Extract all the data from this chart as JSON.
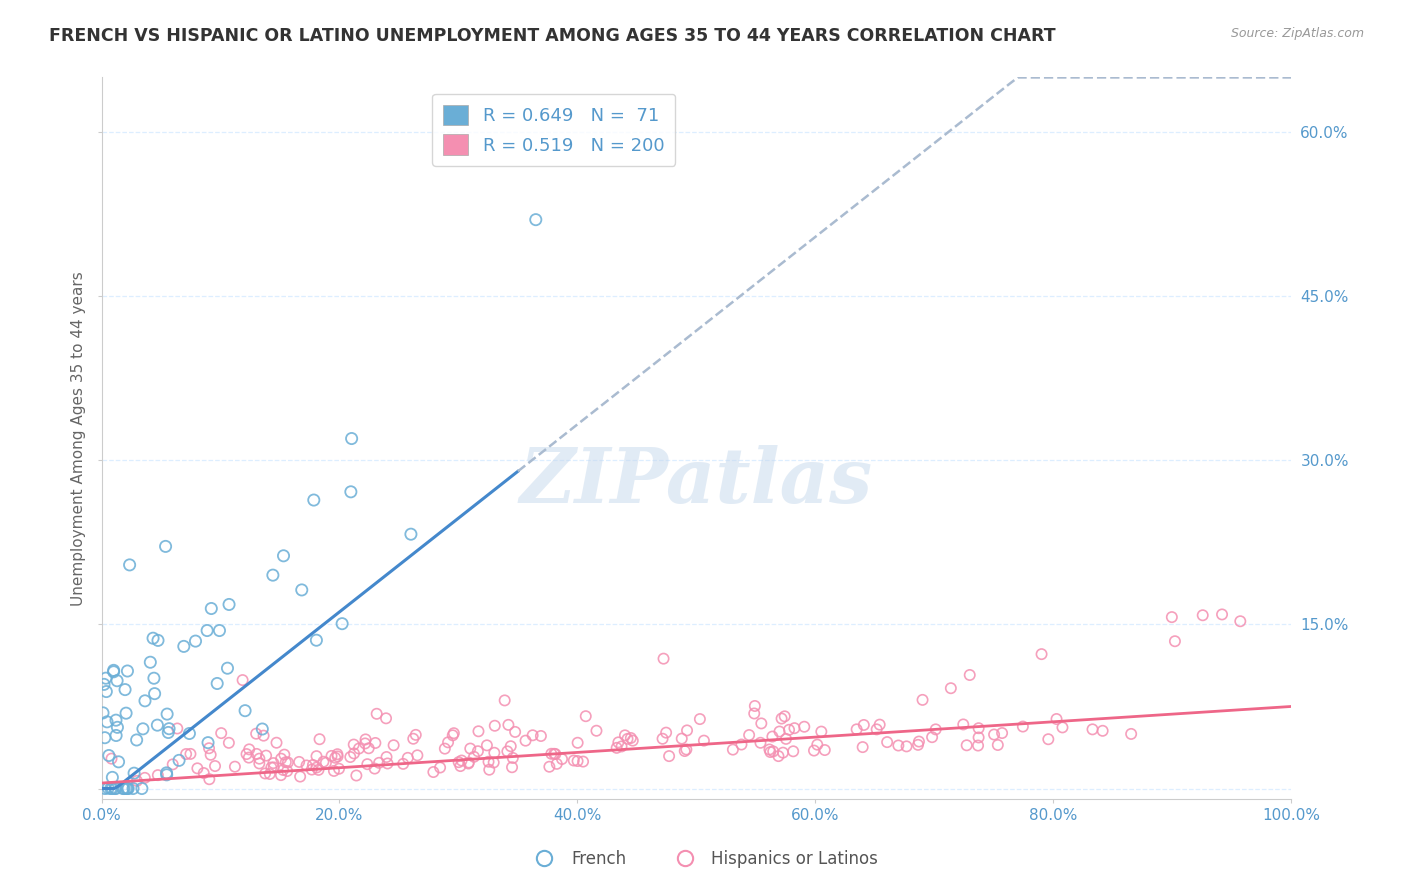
{
  "title": "FRENCH VS HISPANIC OR LATINO UNEMPLOYMENT AMONG AGES 35 TO 44 YEARS CORRELATION CHART",
  "source": "Source: ZipAtlas.com",
  "ylabel": "Unemployment Among Ages 35 to 44 years",
  "ytick_values": [
    0.0,
    0.15,
    0.3,
    0.45,
    0.6
  ],
  "ytick_labels": [
    "",
    "15.0%",
    "30.0%",
    "45.0%",
    "60.0%"
  ],
  "xtick_values": [
    0.0,
    0.2,
    0.4,
    0.6,
    0.8,
    1.0
  ],
  "xtick_labels": [
    "0.0%",
    "20.0%",
    "40.0%",
    "60.0%",
    "80.0%",
    "100.0%"
  ],
  "xlim": [
    0.0,
    1.0
  ],
  "ylim": [
    -0.01,
    0.65
  ],
  "french_color": "#6aaed6",
  "french_edge": "#6aaed6",
  "hispanic_color": "#f48fb1",
  "hispanic_edge": "#f48fb1",
  "trend_french_color": "#4488cc",
  "trend_hispanic_color": "#ee6688",
  "dash_color": "#aabbd0",
  "french_R": 0.649,
  "french_N": 71,
  "hispanic_R": 0.519,
  "hispanic_N": 200,
  "title_color": "#333333",
  "tick_color": "#5599cc",
  "grid_color": "#ddeeff",
  "watermark": "ZIPatlas",
  "watermark_color": "#c5d8ec",
  "legend_label_french": "French",
  "legend_label_hispanic": "Hispanics or Latinos",
  "background_color": "#ffffff"
}
